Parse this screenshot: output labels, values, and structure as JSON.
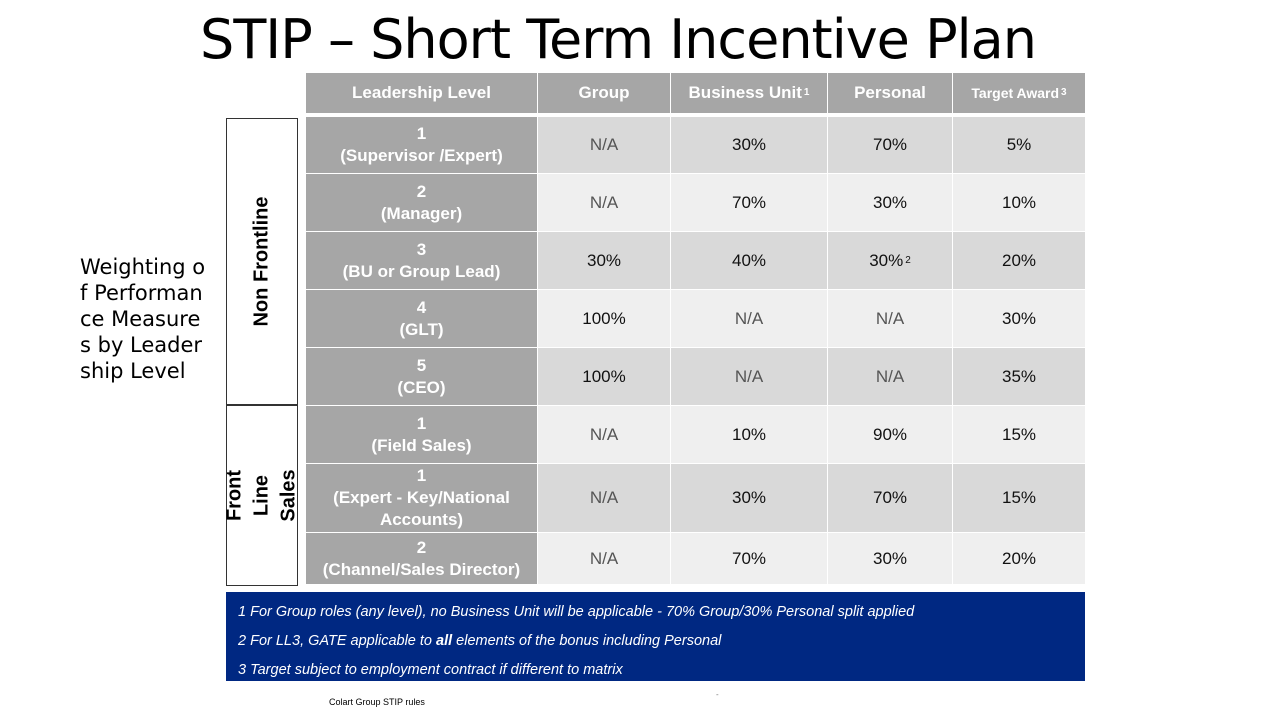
{
  "title": "STIP – Short Term Incentive Plan",
  "side_label": "Weighting of Performance Measures by Leadership Level",
  "groups": {
    "non_frontline": "Non Frontline",
    "front_line_sales": "Front Line Sales"
  },
  "table": {
    "headers": {
      "leadership_level": "Leadership Level",
      "group": "Group",
      "business_unit": "Business Unit",
      "business_unit_sup": "1",
      "personal": "Personal",
      "target_award": "Target Award",
      "target_award_sup": "3"
    },
    "rows": [
      {
        "level": "1",
        "role": "(Supervisor /Expert)",
        "group": "N/A",
        "business_unit": "30%",
        "personal": "70%",
        "personal_sup": "",
        "target": "5%"
      },
      {
        "level": "2",
        "role": "(Manager)",
        "group": "N/A",
        "business_unit": "70%",
        "personal": "30%",
        "personal_sup": "",
        "target": "10%"
      },
      {
        "level": "3",
        "role": "(BU or Group Lead)",
        "group": "30%",
        "business_unit": "40%",
        "personal": "30%",
        "personal_sup": "2",
        "target": "20%"
      },
      {
        "level": "4",
        "role": "(GLT)",
        "group": "100%",
        "business_unit": "N/A",
        "personal": "N/A",
        "personal_sup": "",
        "target": "30%"
      },
      {
        "level": "5",
        "role": "(CEO)",
        "group": "100%",
        "business_unit": "N/A",
        "personal": "N/A",
        "personal_sup": "",
        "target": "35%"
      },
      {
        "level": "1",
        "role": "(Field Sales)",
        "group": "N/A",
        "business_unit": "10%",
        "personal": "90%",
        "personal_sup": "",
        "target": "15%"
      },
      {
        "level": "1",
        "role": "(Expert - Key/National Accounts)",
        "group": "N/A",
        "business_unit": "30%",
        "personal": "70%",
        "personal_sup": "",
        "target": "15%"
      },
      {
        "level": "2",
        "role": "(Channel/Sales Director)",
        "group": "N/A",
        "business_unit": "70%",
        "personal": "30%",
        "personal_sup": "",
        "target": "20%"
      }
    ]
  },
  "footnotes": {
    "note1": "1  For Group roles (any level), no Business Unit will be applicable  - 70%  Group/30%  Personal split applied",
    "note2_before": "2 For LL3,  GATE applicable  to ",
    "note2_bold": "all",
    "note2_after": " elements of the bonus including  Personal",
    "note3": "3  Target  subject  to employment  contract  if different to matrix"
  },
  "source": "Colart Group STIP rules",
  "dash": "-"
}
